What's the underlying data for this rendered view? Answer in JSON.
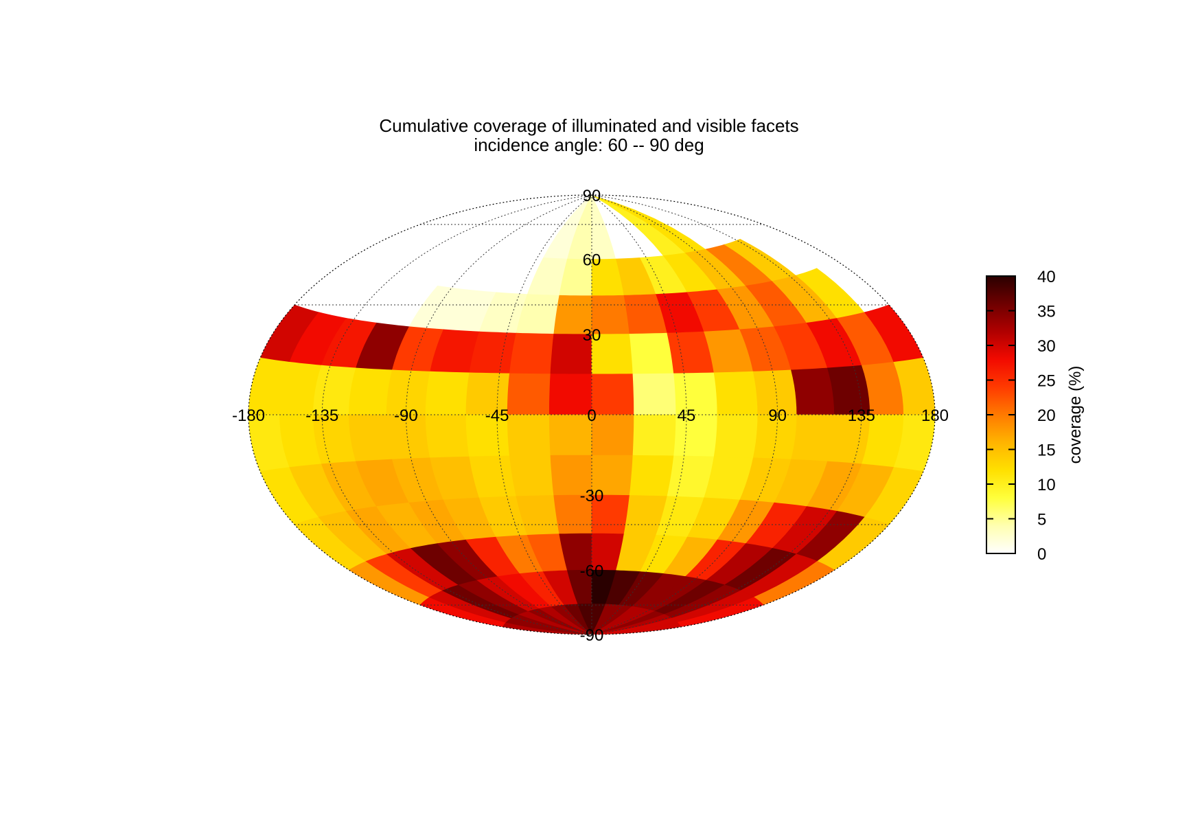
{
  "title": "Cumulative coverage of illuminated and visible facets",
  "subtitle": "incidence angle: 60 -- 90 deg",
  "colorbar": {
    "label": "coverage (%)",
    "min": 0,
    "max": 40,
    "ticks": [
      "0",
      "5",
      "10",
      "15",
      "20",
      "25",
      "30",
      "35",
      "40"
    ]
  },
  "colors": {
    "scale": [
      "#ffffff",
      "#ffffb0",
      "#ffff3c",
      "#ffe000",
      "#ffb400",
      "#ff7a00",
      "#ff3a00",
      "#f20a00",
      "#b00000",
      "#6e0000",
      "#2a0000"
    ]
  },
  "chart_data": {
    "type": "heatmap",
    "projection": "Hammer-Aitoff (equal-area ellipse)",
    "title": "Cumulative coverage of illuminated and visible facets",
    "subtitle": "incidence angle: 60 -- 90 deg",
    "xlabel": "",
    "ylabel": "",
    "longitude_ticks": [
      "-180",
      "-135",
      "-90",
      "-45",
      "0",
      "45",
      "90",
      "135",
      "180"
    ],
    "latitude_ticks": [
      "90",
      "60",
      "30",
      "-30",
      "-60",
      "-90"
    ],
    "lon_range": [
      -180,
      180
    ],
    "lat_range": [
      -90,
      90
    ],
    "grid": true,
    "legend": "colorbar right",
    "color_range": [
      0,
      40
    ],
    "lon_edges": [
      -180,
      -160,
      -140,
      -120,
      -100,
      -80,
      -60,
      -40,
      -20,
      0,
      20,
      40,
      60,
      80,
      100,
      120,
      140,
      160,
      180
    ],
    "lat_bands": [
      {
        "lat": [
          60,
          90
        ],
        "values": [
          0,
          0,
          0,
          0,
          0,
          0,
          0,
          2,
          4,
          3,
          0,
          0,
          10,
          12,
          0,
          0,
          0,
          0
        ]
      },
      {
        "lat": [
          45,
          60
        ],
        "values": [
          0,
          0,
          0,
          0,
          0,
          0,
          0,
          3,
          5,
          12,
          14,
          10,
          12,
          15,
          20,
          14,
          0,
          0
        ]
      },
      {
        "lat": [
          30,
          45
        ],
        "values": [
          0,
          0,
          0,
          0,
          2,
          2,
          3,
          4,
          18,
          20,
          22,
          28,
          24,
          18,
          22,
          16,
          12,
          0
        ]
      },
      {
        "lat": [
          15,
          30
        ],
        "values": [
          30,
          28,
          27,
          34,
          24,
          27,
          26,
          24,
          30,
          12,
          8,
          24,
          18,
          22,
          24,
          28,
          22,
          28
        ]
      },
      {
        "lat": [
          0,
          15
        ],
        "values": [
          12,
          12,
          11,
          12,
          13,
          12,
          14,
          22,
          28,
          24,
          6,
          8,
          12,
          14,
          34,
          36,
          20,
          14
        ]
      },
      {
        "lat": [
          -15,
          0
        ],
        "values": [
          11,
          12,
          13,
          14,
          14,
          13,
          12,
          14,
          16,
          18,
          10,
          8,
          11,
          13,
          14,
          14,
          12,
          11
        ]
      },
      {
        "lat": [
          -30,
          -15
        ],
        "values": [
          12,
          14,
          16,
          17,
          16,
          15,
          13,
          14,
          18,
          17,
          12,
          9,
          11,
          14,
          15,
          17,
          16,
          13
        ]
      },
      {
        "lat": [
          -45,
          -30
        ],
        "values": [
          13,
          15,
          17,
          16,
          17,
          16,
          14,
          15,
          20,
          24,
          14,
          11,
          13,
          18,
          26,
          30,
          34,
          14
        ]
      },
      {
        "lat": [
          -60,
          -45
        ],
        "values": [
          18,
          24,
          30,
          36,
          34,
          26,
          20,
          22,
          34,
          30,
          14,
          12,
          16,
          26,
          32,
          36,
          30,
          20
        ]
      },
      {
        "lat": [
          -75,
          -60
        ],
        "values": [
          28,
          30,
          36,
          34,
          30,
          28,
          26,
          30,
          36,
          40,
          38,
          36,
          34,
          34,
          36,
          34,
          30,
          28
        ]
      },
      {
        "lat": [
          -90,
          -75
        ],
        "values": [
          32,
          34,
          34,
          32,
          34,
          32,
          34,
          36,
          38,
          38,
          34,
          34,
          32,
          32,
          34,
          32,
          30,
          30
        ]
      }
    ]
  }
}
